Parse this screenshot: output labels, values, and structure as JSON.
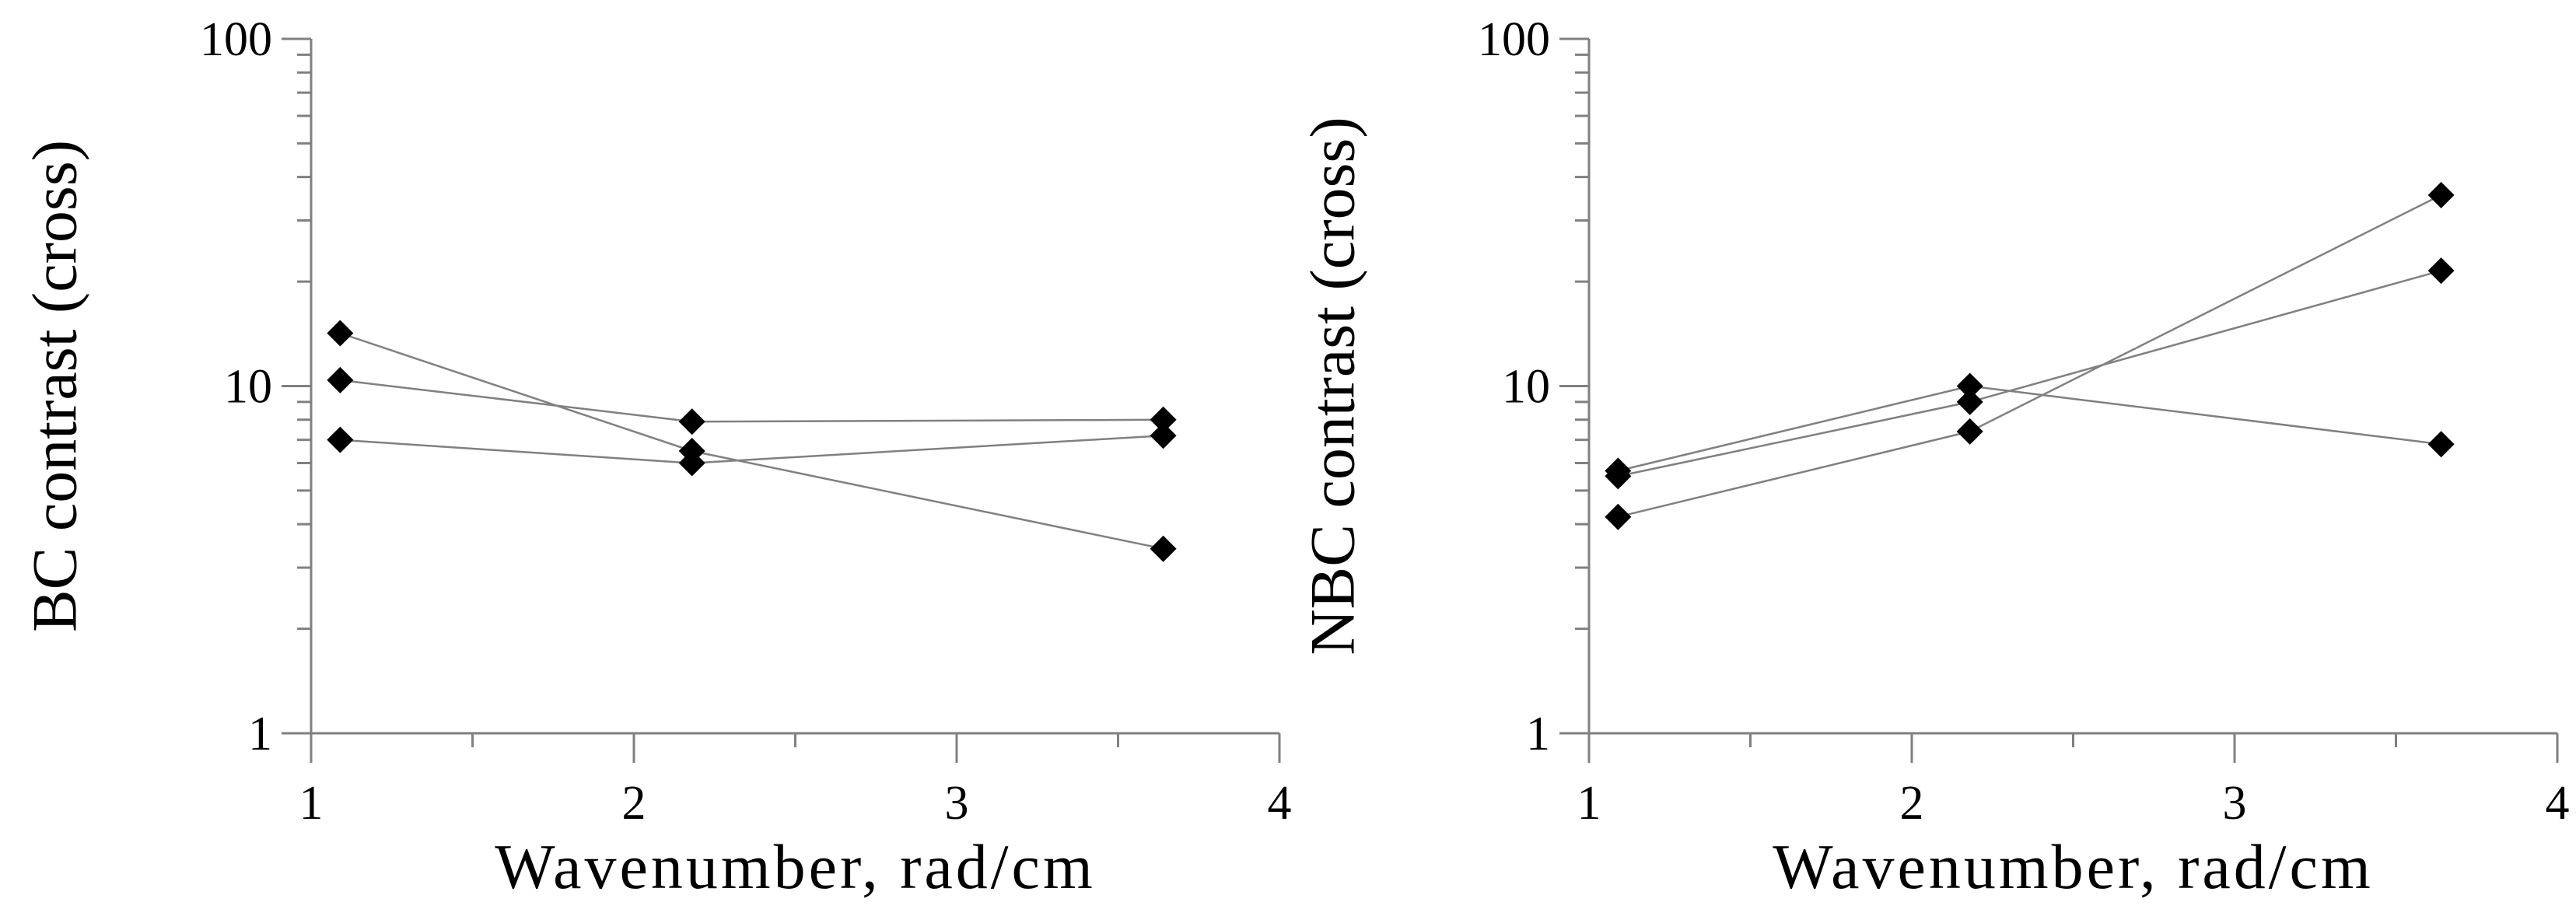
{
  "chart_data": [
    {
      "type": "line",
      "xlabel": "Wavenumber, rad/cm",
      "ylabel": "BC contrast (cross)",
      "xlim": [
        1,
        4
      ],
      "ylim": [
        1,
        100
      ],
      "yscale": "log",
      "xticks": [
        "1",
        "2",
        "3",
        "4"
      ],
      "yticks": [
        "1",
        "10",
        "100"
      ],
      "grid": false,
      "marker": "diamond",
      "series": [
        {
          "x": [
            1.09,
            2.18,
            3.64
          ],
          "y": [
            14.2,
            6.5,
            3.4
          ]
        },
        {
          "x": [
            1.09,
            2.18,
            3.64
          ],
          "y": [
            10.4,
            7.9,
            8.0
          ]
        },
        {
          "x": [
            1.09,
            2.18,
            3.64
          ],
          "y": [
            7.0,
            6.0,
            7.2
          ]
        }
      ]
    },
    {
      "type": "line",
      "xlabel": "Wavenumber, rad/cm",
      "ylabel": "NBC contrast (cross)",
      "xlim": [
        1,
        4
      ],
      "ylim": [
        1,
        100
      ],
      "yscale": "log",
      "xticks": [
        "1",
        "2",
        "3",
        "4"
      ],
      "yticks": [
        "1",
        "10",
        "100"
      ],
      "grid": false,
      "marker": "diamond",
      "series": [
        {
          "x": [
            1.09,
            2.18,
            3.64
          ],
          "y": [
            4.2,
            7.4,
            35.5
          ]
        },
        {
          "x": [
            1.09,
            2.18,
            3.64
          ],
          "y": [
            5.5,
            9.0,
            21.5
          ]
        },
        {
          "x": [
            1.09,
            2.18,
            3.64
          ],
          "y": [
            5.7,
            10.0,
            6.8
          ]
        }
      ]
    }
  ]
}
